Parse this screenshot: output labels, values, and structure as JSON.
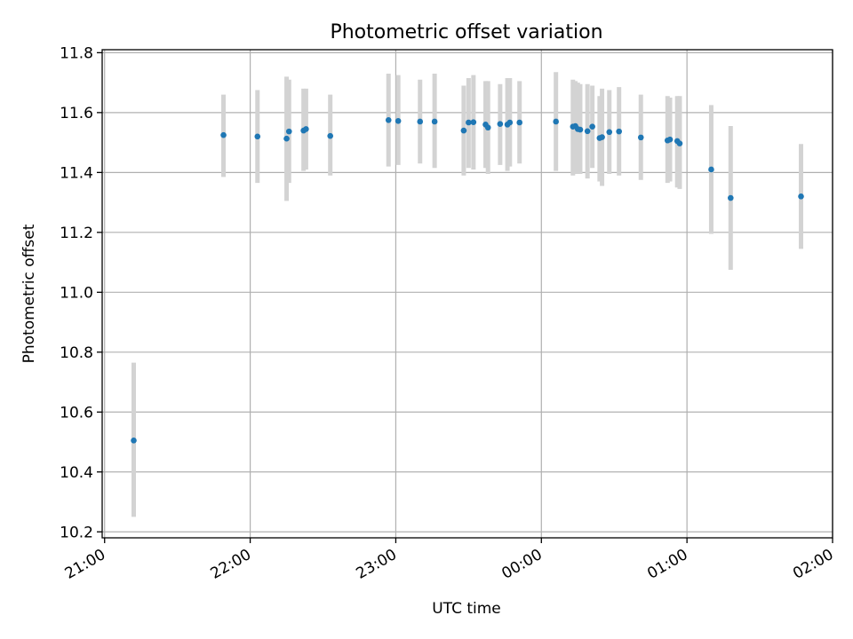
{
  "chart_data": {
    "type": "scatter",
    "title": "Photometric offset variation",
    "xlabel": "UTC time",
    "ylabel": "Photometric offset",
    "x_ticks": [
      "21:00",
      "22:00",
      "23:00",
      "00:00",
      "01:00",
      "02:00"
    ],
    "y_ticks": [
      "10.2",
      "10.4",
      "10.6",
      "10.8",
      "11.0",
      "11.2",
      "11.4",
      "11.6",
      "11.8"
    ],
    "xlim": [
      "20:59",
      "02:00"
    ],
    "ylim": [
      10.18,
      11.81
    ],
    "grid": true,
    "point_color": "#1f77b4",
    "errorbar_color": "#d3d3d3",
    "points": [
      {
        "t": "21:12",
        "y": 10.505,
        "lo": 10.25,
        "hi": 10.765
      },
      {
        "t": "21:49",
        "y": 11.525,
        "lo": 11.385,
        "hi": 11.66
      },
      {
        "t": "22:03",
        "y": 11.52,
        "lo": 11.365,
        "hi": 11.675
      },
      {
        "t": "22:15",
        "y": 11.513,
        "lo": 11.305,
        "hi": 11.72
      },
      {
        "t": "22:16",
        "y": 11.537,
        "lo": 11.365,
        "hi": 11.71
      },
      {
        "t": "22:22",
        "y": 11.54,
        "lo": 11.405,
        "hi": 11.68
      },
      {
        "t": "22:23",
        "y": 11.545,
        "lo": 11.41,
        "hi": 11.68
      },
      {
        "t": "22:33",
        "y": 11.522,
        "lo": 11.39,
        "hi": 11.66
      },
      {
        "t": "22:57",
        "y": 11.575,
        "lo": 11.42,
        "hi": 11.73
      },
      {
        "t": "23:01",
        "y": 11.572,
        "lo": 11.425,
        "hi": 11.725
      },
      {
        "t": "23:10",
        "y": 11.57,
        "lo": 11.43,
        "hi": 11.71
      },
      {
        "t": "23:16",
        "y": 11.57,
        "lo": 11.415,
        "hi": 11.73
      },
      {
        "t": "23:28",
        "y": 11.54,
        "lo": 11.39,
        "hi": 11.69
      },
      {
        "t": "23:30",
        "y": 11.567,
        "lo": 11.415,
        "hi": 11.715
      },
      {
        "t": "23:32",
        "y": 11.568,
        "lo": 11.41,
        "hi": 11.725
      },
      {
        "t": "23:37",
        "y": 11.56,
        "lo": 11.415,
        "hi": 11.705
      },
      {
        "t": "23:38",
        "y": 11.55,
        "lo": 11.395,
        "hi": 11.705
      },
      {
        "t": "23:43",
        "y": 11.562,
        "lo": 11.425,
        "hi": 11.695
      },
      {
        "t": "23:46",
        "y": 11.56,
        "lo": 11.405,
        "hi": 11.715
      },
      {
        "t": "23:47",
        "y": 11.567,
        "lo": 11.42,
        "hi": 11.715
      },
      {
        "t": "23:51",
        "y": 11.567,
        "lo": 11.43,
        "hi": 11.705
      },
      {
        "t": "00:06",
        "y": 11.57,
        "lo": 11.405,
        "hi": 11.735
      },
      {
        "t": "00:13",
        "y": 11.553,
        "lo": 11.39,
        "hi": 11.71
      },
      {
        "t": "00:14",
        "y": 11.555,
        "lo": 11.395,
        "hi": 11.705
      },
      {
        "t": "00:15",
        "y": 11.545,
        "lo": 11.395,
        "hi": 11.7
      },
      {
        "t": "00:16",
        "y": 11.543,
        "lo": 11.395,
        "hi": 11.695
      },
      {
        "t": "00:19",
        "y": 11.538,
        "lo": 11.38,
        "hi": 11.695
      },
      {
        "t": "00:21",
        "y": 11.553,
        "lo": 11.415,
        "hi": 11.69
      },
      {
        "t": "00:24",
        "y": 11.515,
        "lo": 11.37,
        "hi": 11.655
      },
      {
        "t": "00:25",
        "y": 11.518,
        "lo": 11.355,
        "hi": 11.68
      },
      {
        "t": "00:28",
        "y": 11.535,
        "lo": 11.395,
        "hi": 11.675
      },
      {
        "t": "00:32",
        "y": 11.537,
        "lo": 11.39,
        "hi": 11.685
      },
      {
        "t": "00:41",
        "y": 11.517,
        "lo": 11.375,
        "hi": 11.66
      },
      {
        "t": "00:52",
        "y": 11.507,
        "lo": 11.365,
        "hi": 11.655
      },
      {
        "t": "00:53",
        "y": 11.51,
        "lo": 11.37,
        "hi": 11.65
      },
      {
        "t": "00:56",
        "y": 11.505,
        "lo": 11.35,
        "hi": 11.655
      },
      {
        "t": "00:57",
        "y": 11.497,
        "lo": 11.345,
        "hi": 11.655
      },
      {
        "t": "01:10",
        "y": 11.41,
        "lo": 11.195,
        "hi": 11.625
      },
      {
        "t": "01:18",
        "y": 11.315,
        "lo": 11.075,
        "hi": 11.555
      },
      {
        "t": "01:47",
        "y": 11.32,
        "lo": 11.145,
        "hi": 11.495
      }
    ]
  }
}
